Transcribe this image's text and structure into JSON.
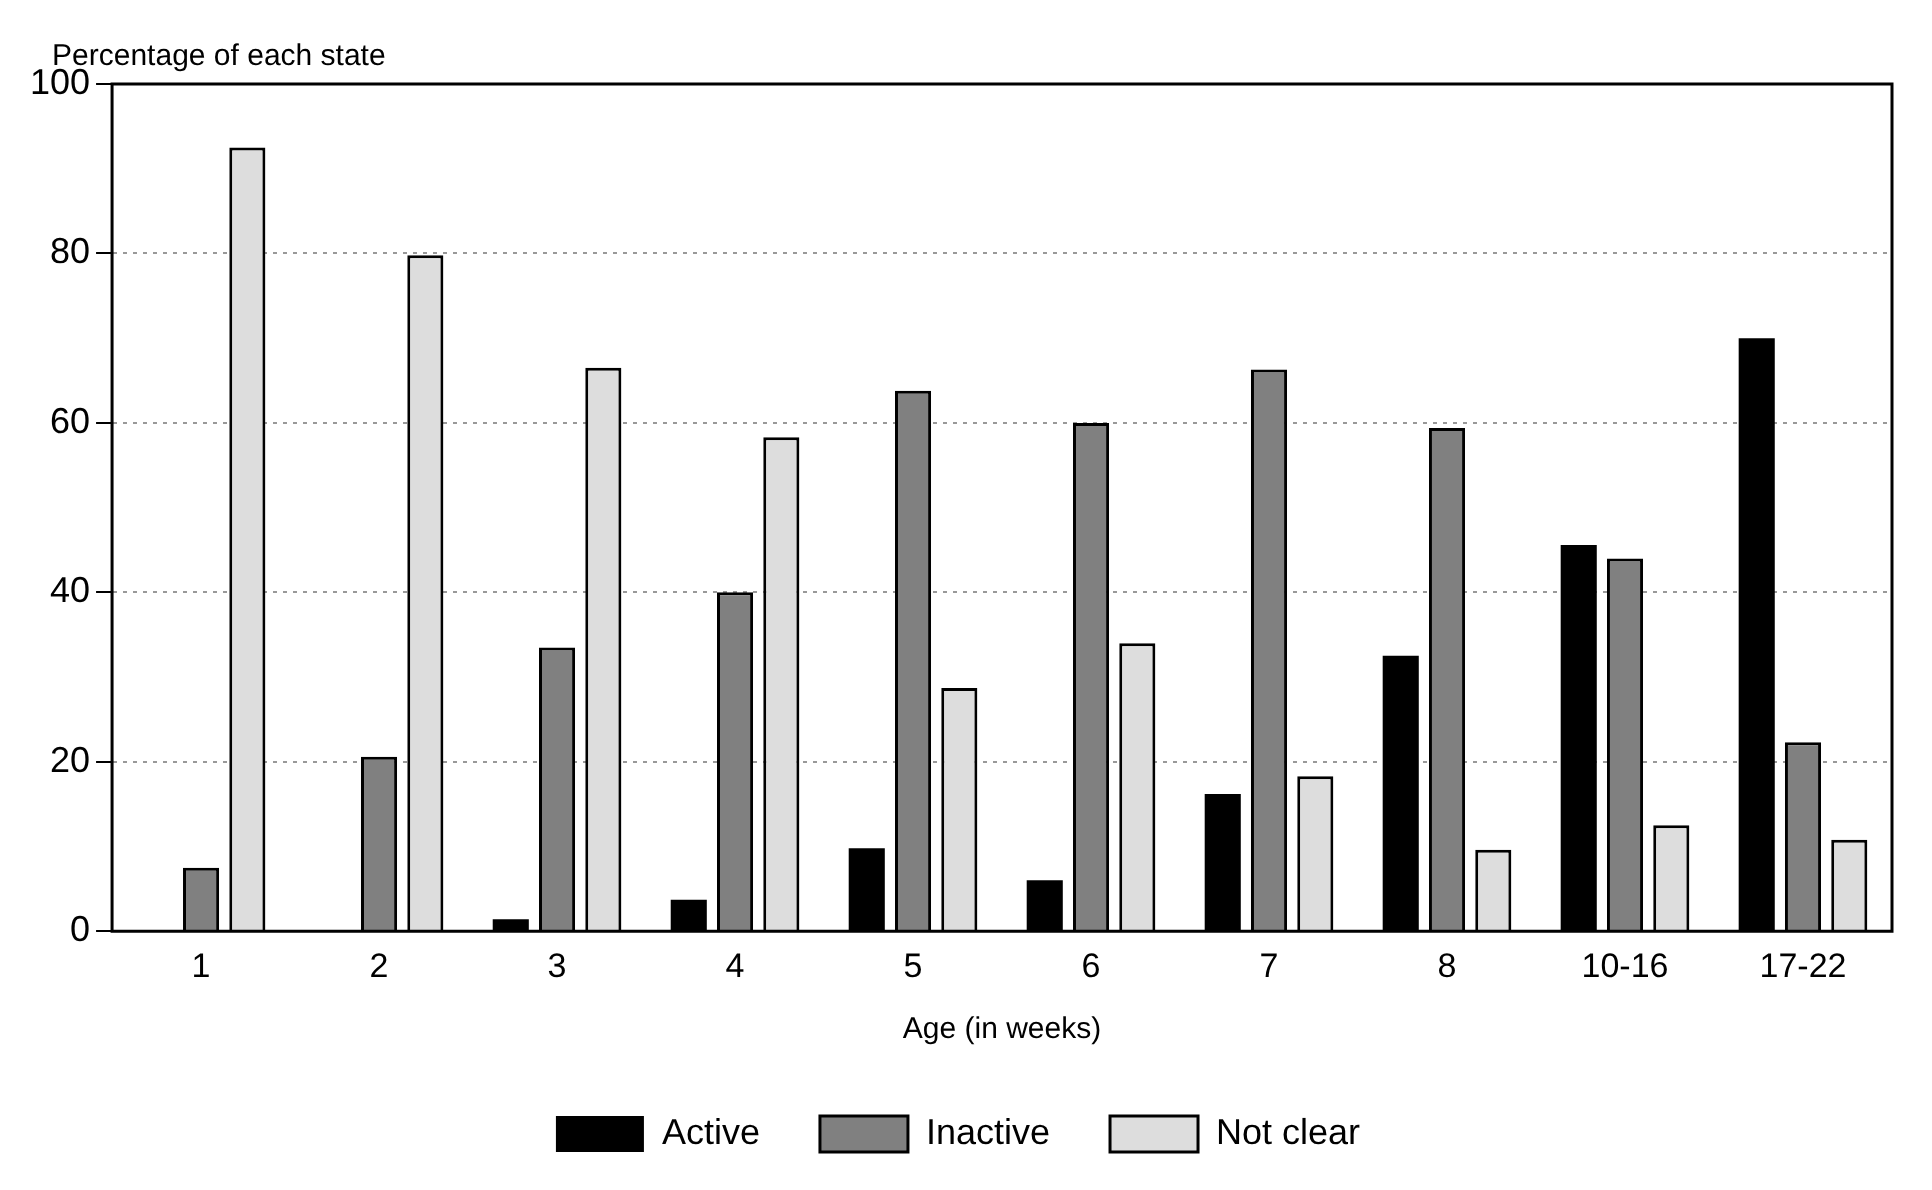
{
  "chart_data": {
    "type": "bar",
    "xlabel": "Age (in weeks)",
    "ylabel": "Percentage of each state",
    "categories": [
      "1",
      "2",
      "3",
      "4",
      "5",
      "6",
      "7",
      "8",
      "10-16",
      "17-22"
    ],
    "series": [
      {
        "name": "Active",
        "color": "#000000",
        "values": [
          0,
          0,
          1.4,
          3.7,
          9.8,
          6,
          16.2,
          32.5,
          45.6,
          70
        ]
      },
      {
        "name": "Inactive",
        "color": "#808080",
        "values": [
          7.5,
          20.6,
          33.5,
          40,
          63.8,
          60,
          66.3,
          59.4,
          44,
          22.3
        ]
      },
      {
        "name": "Not clear",
        "color": "#dddddd",
        "values": [
          92.5,
          79.8,
          66.5,
          58.3,
          28.7,
          34,
          18.3,
          9.6,
          12.5,
          10.8
        ]
      }
    ],
    "ylim": [
      0,
      100
    ],
    "yticks": [
      0,
      20,
      40,
      60,
      80,
      100
    ],
    "grid": "y",
    "legend": "bottom"
  }
}
